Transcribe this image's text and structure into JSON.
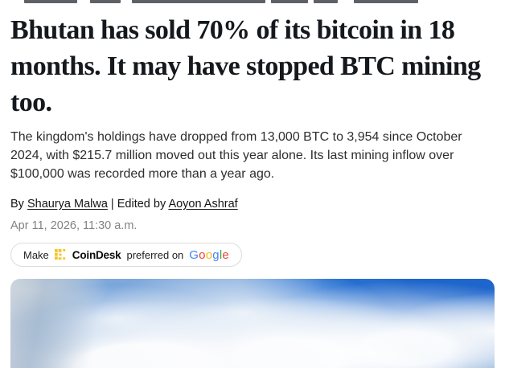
{
  "article": {
    "headline": "Bhutan has sold 70% of its bitcoin in 18 months. It may have stopped BTC mining too.",
    "subheadline": "The kingdom's holdings have dropped from 13,000 BTC to 3,954 since October 2024, with $215.7 million moved out this year alone. Its last mining inflow over $100,000 was recorded more than a year ago.",
    "byline": {
      "prefix": "By",
      "author": "Shaurya Malwa",
      "separator": "|",
      "edited_prefix": "Edited by",
      "editor": "Aoyon Ashraf"
    },
    "date": "Apr 11, 2026, 11:30 a.m."
  },
  "preferred_pill": {
    "make_label": "Make",
    "brand": "CoinDesk",
    "brand_color": "#F5C426",
    "middle_label": "preferred on",
    "google": {
      "letters": [
        {
          "ch": "G",
          "color": "#4285F4"
        },
        {
          "ch": "o",
          "color": "#EA4335"
        },
        {
          "ch": "o",
          "color": "#FBBC05"
        },
        {
          "ch": "g",
          "color": "#4285F4"
        },
        {
          "ch": "l",
          "color": "#34A853"
        },
        {
          "ch": "e",
          "color": "#EA4335"
        }
      ]
    }
  },
  "hero_image": {
    "description": "Blue sky with scattered white clouds"
  }
}
